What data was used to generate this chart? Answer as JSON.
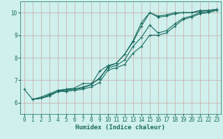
{
  "xlabel": "Humidex (Indice chaleur)",
  "bg_color": "#cff0ec",
  "line_color": "#1a6b60",
  "grid_color": "#c8a8a8",
  "xlim": [
    -0.5,
    23.5
  ],
  "ylim": [
    5.5,
    10.5
  ],
  "yticks": [
    6,
    7,
    8,
    9,
    10
  ],
  "xticks": [
    0,
    1,
    2,
    3,
    4,
    5,
    6,
    7,
    8,
    9,
    10,
    11,
    12,
    13,
    14,
    15,
    16,
    17,
    18,
    19,
    20,
    21,
    22,
    23
  ],
  "lines": [
    {
      "x": [
        0,
        1,
        2,
        3,
        4,
        5,
        6,
        7,
        8,
        9,
        10,
        11,
        12,
        13,
        14,
        15,
        16,
        17,
        18,
        19,
        20,
        21,
        22,
        23
      ],
      "y": [
        6.6,
        6.15,
        6.25,
        6.4,
        6.55,
        6.6,
        6.65,
        6.85,
        6.85,
        7.05,
        7.6,
        7.75,
        8.15,
        8.75,
        9.55,
        10.0,
        9.85,
        9.9,
        10.0,
        10.0,
        10.0,
        10.05,
        10.1,
        10.15
      ]
    },
    {
      "x": [
        1,
        2,
        3,
        4,
        5,
        6,
        7,
        8,
        9,
        10,
        11,
        12,
        13,
        14,
        15,
        16,
        17,
        18,
        19,
        20,
        21,
        22,
        23
      ],
      "y": [
        6.15,
        6.2,
        6.35,
        6.5,
        6.6,
        6.6,
        6.7,
        6.8,
        7.4,
        7.65,
        7.75,
        8.15,
        8.7,
        9.4,
        10.0,
        9.8,
        9.85,
        9.95,
        10.0,
        10.0,
        10.1,
        10.1,
        10.15
      ]
    },
    {
      "x": [
        1,
        2,
        3,
        4,
        5,
        6,
        7,
        8,
        9,
        10,
        11,
        12,
        13,
        14,
        15,
        16,
        17,
        18,
        19,
        20,
        21,
        22,
        23
      ],
      "y": [
        6.15,
        6.2,
        6.3,
        6.5,
        6.55,
        6.6,
        6.65,
        6.8,
        7.1,
        7.55,
        7.65,
        7.9,
        8.5,
        8.9,
        9.45,
        9.1,
        9.2,
        9.5,
        9.75,
        9.85,
        10.0,
        10.05,
        10.1
      ]
    },
    {
      "x": [
        1,
        2,
        3,
        4,
        5,
        6,
        7,
        8,
        9,
        10,
        11,
        12,
        13,
        14,
        15,
        16,
        17,
        18,
        19,
        20,
        21,
        22,
        23
      ],
      "y": [
        6.15,
        6.2,
        6.3,
        6.5,
        6.5,
        6.55,
        6.6,
        6.7,
        6.9,
        7.45,
        7.55,
        7.7,
        8.2,
        8.5,
        9.0,
        9.0,
        9.1,
        9.4,
        9.7,
        9.8,
        9.95,
        10.0,
        10.1
      ]
    }
  ],
  "marker": "+",
  "markersize": 3,
  "linewidth": 0.8,
  "tick_fontsize": 5.5,
  "label_fontsize": 6.5,
  "tick_color": "#1a6b60",
  "label_color": "#1a6b60"
}
